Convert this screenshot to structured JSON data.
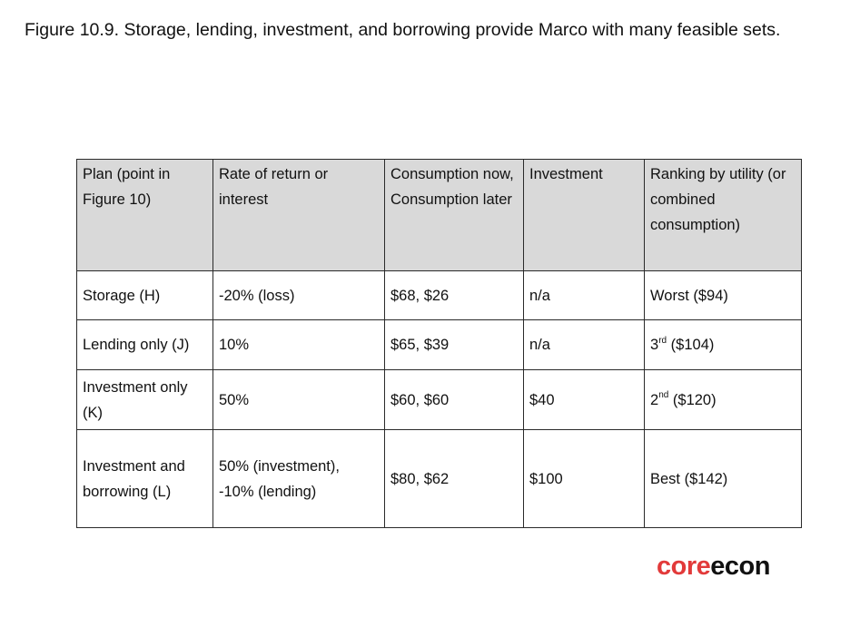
{
  "caption": "Figure 10.9. Storage, lending, investment, and borrowing provide Marco with many feasible sets.",
  "table": {
    "headers": [
      "Plan (point in Figure 10)",
      "Rate of return or interest",
      "Consumption now, Consumption later",
      "Investment",
      "Ranking by utility (or combined consumption)"
    ],
    "rows": [
      {
        "plan": "Storage (H)",
        "rate": "-20% (loss)",
        "consumption": "$68, $26",
        "investment": "n/a",
        "rank_prefix": "Worst ($94)",
        "rank_sup": "",
        "rank_rest": ""
      },
      {
        "plan": "Lending only (J)",
        "rate": "10%",
        "consumption": "$65, $39",
        "investment": "n/a",
        "rank_prefix": "3",
        "rank_sup": "rd",
        "rank_rest": " ($104)"
      },
      {
        "plan": "Investment only (K)",
        "rate": "50%",
        "consumption": "$60, $60",
        "investment": "$40",
        "rank_prefix": "2",
        "rank_sup": "nd",
        "rank_rest": " ($120)"
      },
      {
        "plan": "Investment and borrowing (L)",
        "rate": "50% (investment), -10% (lending)",
        "consumption": "$80, $62",
        "investment": "$100",
        "rank_prefix": "Best ($142)",
        "rank_sup": "",
        "rank_rest": ""
      }
    ]
  },
  "logo": {
    "part1": "core",
    "part2": "econ",
    "color_core": "#e23a3a",
    "color_econ": "#111111"
  }
}
